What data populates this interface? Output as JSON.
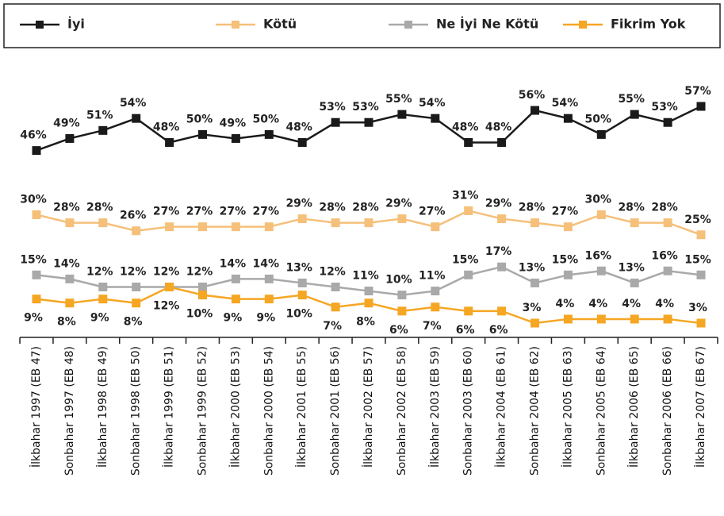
{
  "chart_data": {
    "type": "line",
    "categories": [
      "İlkbahar 1997 (EB 47)",
      "Sonbahar 1997 (EB 48)",
      "İlkbahar 1998 (EB 49)",
      "Sonbahar 1998 (EB 50)",
      "İlkbahar 1999 (EB 51)",
      "Sonbahar 1999 (EB 52)",
      "İlkbahar 2000 (EB 53)",
      "Sonbahar 2000 (EB 54)",
      "İlkbahar 2001 (EB 55)",
      "Sonbahar 2001 (EB 56)",
      "İlkbahar 2002 (EB 57)",
      "Sonbahar 2002 (EB 58)",
      "İlkbahar 2003 (EB 59)",
      "Sonbahar 2003 (EB 60)",
      "İlkbahar 2004 (EB 61)",
      "Sonbahar 2004 (EB 62)",
      "İlkbahar 2005 (EB 63)",
      "Sonbahar 2005 (EB 64)",
      "İlkbahar 2006 (EB 65)",
      "Sonbahar 2006 (EB 66)",
      "İlkbahar 2007 (EB 67)"
    ],
    "series": [
      {
        "name": "İyi",
        "color": "#1a1a1a",
        "values": [
          46,
          49,
          51,
          54,
          48,
          50,
          49,
          50,
          48,
          53,
          53,
          55,
          54,
          48,
          48,
          56,
          54,
          50,
          55,
          53,
          57
        ],
        "value_labels": [
          "46%",
          "49%",
          "51%",
          "54%",
          "48%",
          "50%",
          "49%",
          "50%",
          "48%",
          "53%",
          "53%",
          "55%",
          "54%",
          "48%",
          "48%",
          "56%",
          "54%",
          "50%",
          "55%",
          "53%",
          "57%"
        ]
      },
      {
        "name": "Kötü",
        "color": "#f5c07a",
        "values": [
          30,
          28,
          28,
          26,
          27,
          27,
          27,
          27,
          29,
          28,
          28,
          29,
          27,
          31,
          29,
          28,
          27,
          30,
          28,
          28,
          25
        ],
        "value_labels": [
          "30%",
          "28%",
          "28%",
          "26%",
          "27%",
          "27%",
          "27%",
          "27%",
          "29%",
          "28%",
          "28%",
          "29%",
          "27%",
          "31%",
          "29%",
          "28%",
          "27%",
          "30%",
          "28%",
          "28%",
          "25%"
        ]
      },
      {
        "name": "Ne İyi Ne Kötü",
        "color": "#a9a9a9",
        "values": [
          15,
          14,
          12,
          12,
          12,
          12,
          14,
          14,
          13,
          12,
          11,
          10,
          11,
          15,
          17,
          13,
          15,
          16,
          13,
          16,
          15
        ],
        "value_labels": [
          "15%",
          "14%",
          "12%",
          "12%",
          "12%",
          "12%",
          "14%",
          "14%",
          "13%",
          "12%",
          "11%",
          "10%",
          "11%",
          "15%",
          "17%",
          "13%",
          "15%",
          "16%",
          "13%",
          "16%",
          "15%"
        ]
      },
      {
        "name": "Fikrim Yok",
        "color": "#f5a623",
        "values": [
          9,
          8,
          9,
          8,
          12,
          10,
          9,
          9,
          10,
          7,
          8,
          6,
          7,
          6,
          6,
          3,
          4,
          4,
          4,
          4,
          3
        ],
        "value_labels": [
          "9%",
          "8%",
          "9%",
          "8%",
          "12%",
          "10%",
          "9%",
          "9%",
          "10%",
          "7%",
          "8%",
          "6%",
          "7%",
          "6%",
          "6%",
          "3%",
          "4%",
          "4%",
          "4%",
          "4%",
          "3%"
        ]
      }
    ]
  }
}
